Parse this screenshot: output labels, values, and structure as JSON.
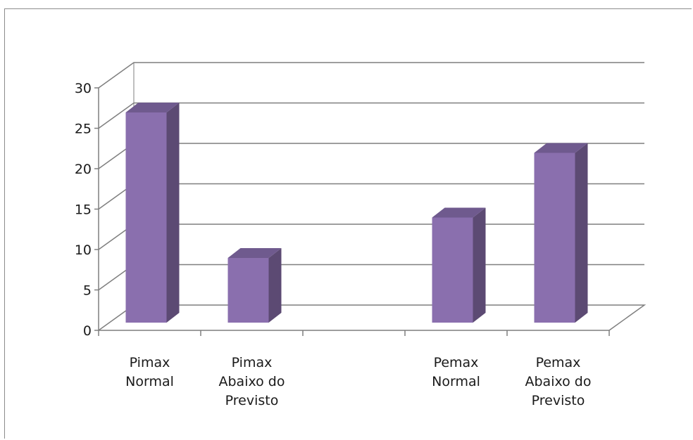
{
  "chart_data": {
    "type": "bar",
    "style": "3d-column",
    "categories": [
      [
        "Pimax",
        "Normal"
      ],
      [
        "Pimax",
        "Abaixo do",
        "Previsto"
      ],
      [
        "",
        ""
      ],
      [
        "Pemax",
        "Normal"
      ],
      [
        "Pemax",
        "Abaixo do",
        "Previsto"
      ]
    ],
    "values": [
      26,
      8,
      null,
      13,
      21
    ],
    "ylim": [
      0,
      30
    ],
    "yticks": [
      0,
      5,
      10,
      15,
      20,
      25,
      30
    ],
    "grid": true,
    "legend": "none",
    "colors": {
      "bar_front": "#8a6fae",
      "bar_side": "#5c4a73",
      "bar_top": "#6f5a8e",
      "grid": "#7f7f7f",
      "axis": "#7f7f7f"
    }
  }
}
